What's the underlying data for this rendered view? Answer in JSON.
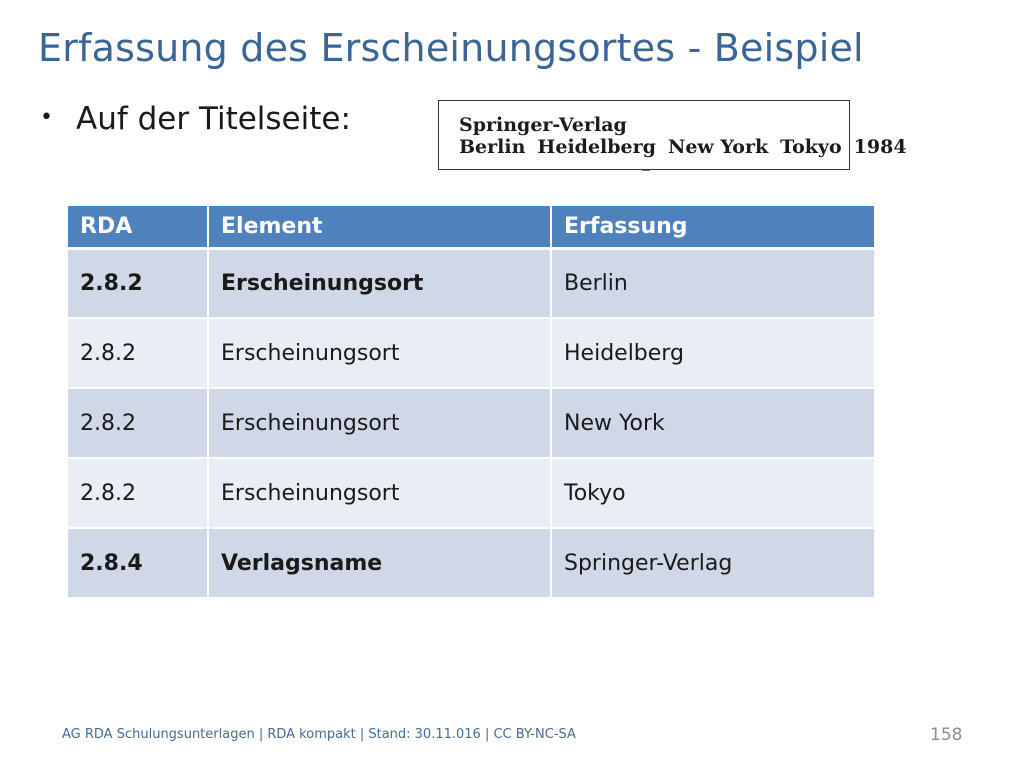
{
  "slide": {
    "title": "Erfassung des Erscheinungsortes - Beispiel",
    "bullet": "Auf der Titelseite:",
    "bullet_symbol": "•"
  },
  "titlepage": {
    "publisher": "Springer-Verlag",
    "places": [
      "Berlin",
      "Heidelberg",
      "New York",
      "Tokyo"
    ],
    "year": "1984"
  },
  "table": {
    "headers": [
      "RDA",
      "Element",
      "Erfassung"
    ],
    "rows": [
      {
        "rda": "2.8.2",
        "element": "Erscheinungsort",
        "value": "Berlin",
        "bold": true
      },
      {
        "rda": "2.8.2",
        "element": "Erscheinungsort",
        "value": "Heidelberg",
        "bold": false
      },
      {
        "rda": "2.8.2",
        "element": "Erscheinungsort",
        "value": "New York",
        "bold": false
      },
      {
        "rda": "2.8.2",
        "element": "Erscheinungsort",
        "value": "Tokyo",
        "bold": false
      },
      {
        "rda": "2.8.4",
        "element": "Verlagsname",
        "value": "Springer-Verlag",
        "bold": true
      }
    ]
  },
  "footer": {
    "text": "AG RDA Schulungsunterlagen | RDA kompakt | Stand: 30.11.016 | CC BY-NC-SA",
    "page_number": "158"
  },
  "colors": {
    "title": "#3a6595",
    "header_bg": "#4f81bd",
    "row_odd_bg": "#d0d8e8",
    "row_even_bg": "#e9edf4",
    "footer": "#4a6a90"
  }
}
